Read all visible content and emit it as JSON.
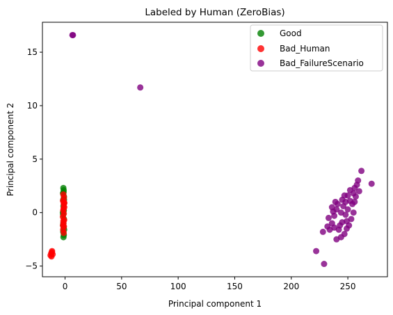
{
  "chart_data": {
    "type": "scatter",
    "title": "Labeled by Human (ZeroBias)",
    "xlabel": "Principal component 1",
    "ylabel": "Principal component 2",
    "xlim": [
      -20,
      285
    ],
    "ylim": [
      -6,
      17.8
    ],
    "xticks": [
      0,
      50,
      100,
      150,
      200,
      250
    ],
    "yticks": [
      -5,
      0,
      5,
      10,
      15
    ],
    "grid": false,
    "legend_position": "top-right",
    "series": [
      {
        "name": "Good",
        "color": "#008000",
        "points": [
          [
            -1.5,
            2.3
          ],
          [
            -1.2,
            2.1
          ],
          [
            -1.8,
            1.8
          ],
          [
            -1.0,
            1.5
          ],
          [
            -1.6,
            1.2
          ],
          [
            -0.9,
            0.9
          ],
          [
            -1.4,
            0.6
          ],
          [
            -1.1,
            0.2
          ],
          [
            -1.7,
            -0.2
          ],
          [
            -1.0,
            -0.6
          ],
          [
            -1.5,
            -1.0
          ],
          [
            -1.2,
            -1.4
          ],
          [
            -1.6,
            -1.8
          ],
          [
            -1.1,
            -2.1
          ],
          [
            -1.4,
            -2.3
          ],
          [
            -0.8,
            -1.6
          ],
          [
            -1.9,
            0.0
          ],
          [
            -1.3,
            1.9
          ],
          [
            -1.7,
            -1.2
          ],
          [
            -0.9,
            1.2
          ]
        ]
      },
      {
        "name": "Bad_Human",
        "color": "#ff0000",
        "points": [
          [
            -1.5,
            1.7
          ],
          [
            -1.0,
            1.4
          ],
          [
            -1.8,
            1.1
          ],
          [
            -1.2,
            0.8
          ],
          [
            -0.7,
            0.5
          ],
          [
            -1.6,
            0.2
          ],
          [
            -1.1,
            -0.1
          ],
          [
            -1.9,
            -0.4
          ],
          [
            -0.8,
            -0.7
          ],
          [
            -1.4,
            -1.0
          ],
          [
            -1.0,
            -1.3
          ],
          [
            -1.7,
            -1.6
          ],
          [
            -1.2,
            -1.9
          ],
          [
            -0.6,
            0.9
          ],
          [
            -1.3,
            0.4
          ],
          [
            -1.5,
            -0.8
          ],
          [
            -1.0,
            1.0
          ],
          [
            -1.8,
            -1.2
          ],
          [
            -11.5,
            -3.6
          ],
          [
            -12.2,
            -3.8
          ],
          [
            -11.0,
            -3.9
          ],
          [
            -12.8,
            -4.0
          ],
          [
            -11.6,
            -3.7
          ],
          [
            -12.0,
            -4.1
          ]
        ]
      },
      {
        "name": "Bad_FailureScenario",
        "color": "#800080",
        "points": [
          [
            6.5,
            16.6
          ],
          [
            7.0,
            16.6
          ],
          [
            66.5,
            11.7
          ],
          [
            228,
            -1.8
          ],
          [
            232,
            -1.3
          ],
          [
            236,
            -1.0
          ],
          [
            233,
            -0.5
          ],
          [
            238,
            -0.3
          ],
          [
            240,
            -2.5
          ],
          [
            242,
            -1.6
          ],
          [
            240,
            0.3
          ],
          [
            244,
            0.0
          ],
          [
            245,
            -0.9
          ],
          [
            246,
            0.6
          ],
          [
            248,
            -0.2
          ],
          [
            248,
            1.0
          ],
          [
            250,
            0.3
          ],
          [
            252,
            1.1
          ],
          [
            250,
            1.6
          ],
          [
            254,
            0.8
          ],
          [
            255,
            1.8
          ],
          [
            256,
            2.3
          ],
          [
            258,
            2.6
          ],
          [
            257,
            1.5
          ],
          [
            259,
            3.0
          ],
          [
            253,
            -0.6
          ],
          [
            247,
            -2.0
          ],
          [
            244,
            -2.3
          ],
          [
            241,
            0.8
          ],
          [
            236,
            0.5
          ],
          [
            239,
            1.0
          ],
          [
            251,
            -1.2
          ],
          [
            255,
            0.0
          ],
          [
            262,
            3.9
          ],
          [
            271,
            2.7
          ],
          [
            222,
            -3.6
          ],
          [
            229,
            -4.8
          ],
          [
            234,
            -1.6
          ],
          [
            243,
            -1.2
          ],
          [
            249,
            -0.8
          ],
          [
            252,
            2.1
          ],
          [
            247,
            1.6
          ],
          [
            245,
            1.2
          ],
          [
            238,
            -1.4
          ],
          [
            256,
            1.0
          ],
          [
            260,
            2.0
          ],
          [
            249,
            -1.5
          ],
          [
            237,
            0.1
          ]
        ]
      }
    ]
  }
}
